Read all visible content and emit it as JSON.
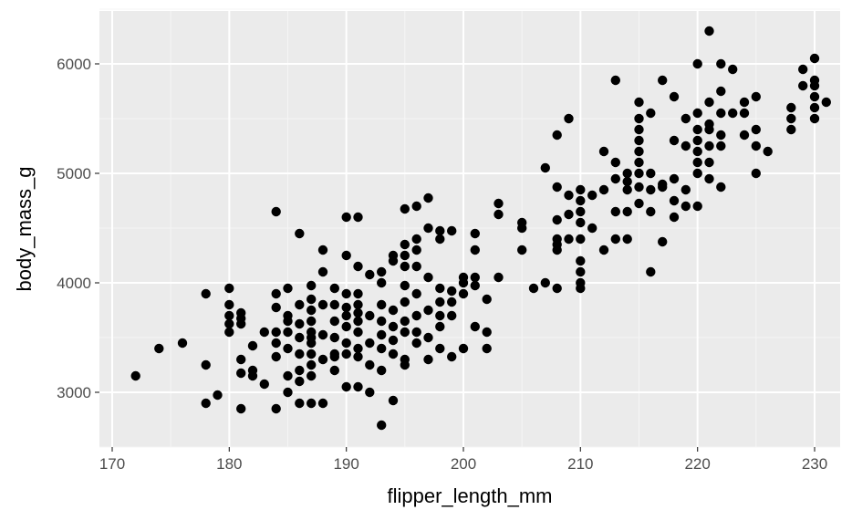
{
  "colors": {
    "panel_background": "#ebebeb",
    "grid_major": "#ffffff",
    "grid_minor": "#f5f5f5",
    "point": "#000000",
    "tick_label": "#4d4d4d"
  },
  "chart_data": {
    "type": "scatter",
    "title": "",
    "xlabel": "flipper_length_mm",
    "ylabel": "body_mass_g",
    "xlim": [
      170,
      232
    ],
    "ylim": [
      2500,
      6500
    ],
    "xticks": [
      170,
      180,
      190,
      200,
      210,
      220,
      230
    ],
    "yticks": [
      3000,
      4000,
      5000,
      6000
    ],
    "grid": true,
    "legend": "none",
    "points": [
      [
        172,
        3150
      ],
      [
        174,
        3400
      ],
      [
        176,
        3450
      ],
      [
        178,
        2900
      ],
      [
        178,
        3250
      ],
      [
        178,
        3900
      ],
      [
        179,
        2975
      ],
      [
        180,
        3550
      ],
      [
        180,
        3625
      ],
      [
        180,
        3700
      ],
      [
        180,
        3800
      ],
      [
        180,
        3950
      ],
      [
        181,
        2850
      ],
      [
        181,
        3175
      ],
      [
        181,
        3300
      ],
      [
        181,
        3625
      ],
      [
        181,
        3675
      ],
      [
        181,
        3725
      ],
      [
        182,
        3150
      ],
      [
        182,
        3200
      ],
      [
        182,
        3425
      ],
      [
        183,
        3075
      ],
      [
        183,
        3550
      ],
      [
        184,
        2850
      ],
      [
        184,
        3325
      ],
      [
        184,
        3450
      ],
      [
        184,
        3550
      ],
      [
        184,
        3775
      ],
      [
        184,
        3900
      ],
      [
        184,
        4650
      ],
      [
        185,
        3000
      ],
      [
        185,
        3150
      ],
      [
        185,
        3400
      ],
      [
        185,
        3550
      ],
      [
        185,
        3650
      ],
      [
        185,
        3700
      ],
      [
        185,
        3950
      ],
      [
        186,
        2900
      ],
      [
        186,
        3100
      ],
      [
        186,
        3200
      ],
      [
        186,
        3350
      ],
      [
        186,
        3500
      ],
      [
        186,
        3625
      ],
      [
        186,
        3800
      ],
      [
        186,
        4450
      ],
      [
        187,
        2900
      ],
      [
        187,
        3150
      ],
      [
        187,
        3250
      ],
      [
        187,
        3350
      ],
      [
        187,
        3450
      ],
      [
        187,
        3500
      ],
      [
        187,
        3550
      ],
      [
        187,
        3650
      ],
      [
        187,
        3750
      ],
      [
        187,
        3850
      ],
      [
        187,
        3975
      ],
      [
        188,
        2900
      ],
      [
        188,
        3300
      ],
      [
        188,
        3525
      ],
      [
        188,
        3800
      ],
      [
        188,
        4100
      ],
      [
        188,
        4300
      ],
      [
        189,
        3200
      ],
      [
        189,
        3325
      ],
      [
        189,
        3350
      ],
      [
        189,
        3500
      ],
      [
        189,
        3650
      ],
      [
        189,
        3800
      ],
      [
        189,
        3950
      ],
      [
        190,
        3050
      ],
      [
        190,
        3350
      ],
      [
        190,
        3450
      ],
      [
        190,
        3600
      ],
      [
        190,
        3700
      ],
      [
        190,
        3775
      ],
      [
        190,
        3900
      ],
      [
        190,
        4250
      ],
      [
        190,
        4600
      ],
      [
        191,
        3050
      ],
      [
        191,
        3325
      ],
      [
        191,
        3400
      ],
      [
        191,
        3550
      ],
      [
        191,
        3650
      ],
      [
        191,
        3725
      ],
      [
        191,
        3800
      ],
      [
        191,
        3900
      ],
      [
        191,
        4150
      ],
      [
        191,
        4600
      ],
      [
        192,
        3000
      ],
      [
        192,
        3250
      ],
      [
        192,
        3450
      ],
      [
        192,
        3700
      ],
      [
        192,
        4075
      ],
      [
        193,
        2700
      ],
      [
        193,
        3200
      ],
      [
        193,
        3400
      ],
      [
        193,
        3525
      ],
      [
        193,
        3650
      ],
      [
        193,
        3800
      ],
      [
        193,
        4000
      ],
      [
        193,
        4100
      ],
      [
        194,
        2925
      ],
      [
        194,
        3350
      ],
      [
        194,
        3475
      ],
      [
        194,
        3600
      ],
      [
        194,
        3750
      ],
      [
        194,
        4200
      ],
      [
        194,
        4250
      ],
      [
        195,
        3250
      ],
      [
        195,
        3300
      ],
      [
        195,
        3550
      ],
      [
        195,
        3650
      ],
      [
        195,
        3825
      ],
      [
        195,
        3975
      ],
      [
        195,
        4150
      ],
      [
        195,
        4250
      ],
      [
        195,
        4350
      ],
      [
        195,
        4675
      ],
      [
        196,
        3450
      ],
      [
        196,
        3550
      ],
      [
        196,
        3700
      ],
      [
        196,
        3900
      ],
      [
        196,
        4150
      ],
      [
        196,
        4300
      ],
      [
        196,
        4400
      ],
      [
        196,
        4700
      ],
      [
        197,
        3300
      ],
      [
        197,
        3500
      ],
      [
        197,
        3750
      ],
      [
        197,
        4050
      ],
      [
        197,
        4500
      ],
      [
        197,
        4775
      ],
      [
        198,
        3400
      ],
      [
        198,
        3600
      ],
      [
        198,
        3700
      ],
      [
        198,
        3825
      ],
      [
        198,
        3950
      ],
      [
        198,
        4400
      ],
      [
        198,
        4475
      ],
      [
        199,
        3325
      ],
      [
        199,
        3700
      ],
      [
        199,
        3825
      ],
      [
        199,
        3925
      ],
      [
        199,
        4475
      ],
      [
        200,
        3400
      ],
      [
        200,
        3900
      ],
      [
        200,
        4000
      ],
      [
        200,
        4050
      ],
      [
        201,
        3600
      ],
      [
        201,
        3975
      ],
      [
        201,
        4050
      ],
      [
        201,
        4300
      ],
      [
        201,
        4450
      ],
      [
        202,
        3400
      ],
      [
        202,
        3550
      ],
      [
        202,
        3850
      ],
      [
        203,
        4050
      ],
      [
        203,
        4625
      ],
      [
        203,
        4725
      ],
      [
        205,
        4300
      ],
      [
        205,
        4500
      ],
      [
        205,
        4550
      ],
      [
        206,
        3950
      ],
      [
        207,
        4000
      ],
      [
        207,
        5050
      ],
      [
        208,
        3950
      ],
      [
        208,
        4300
      ],
      [
        208,
        4350
      ],
      [
        208,
        4400
      ],
      [
        208,
        4575
      ],
      [
        208,
        4875
      ],
      [
        208,
        5350
      ],
      [
        209,
        4400
      ],
      [
        209,
        4625
      ],
      [
        209,
        4800
      ],
      [
        209,
        5500
      ],
      [
        210,
        3950
      ],
      [
        210,
        4000
      ],
      [
        210,
        4100
      ],
      [
        210,
        4200
      ],
      [
        210,
        4400
      ],
      [
        210,
        4550
      ],
      [
        210,
        4650
      ],
      [
        210,
        4750
      ],
      [
        210,
        4850
      ],
      [
        211,
        4800
      ],
      [
        211,
        4500
      ],
      [
        212,
        4300
      ],
      [
        212,
        4850
      ],
      [
        212,
        5200
      ],
      [
        213,
        4400
      ],
      [
        213,
        4650
      ],
      [
        213,
        4950
      ],
      [
        213,
        5100
      ],
      [
        213,
        5850
      ],
      [
        214,
        4400
      ],
      [
        214,
        4650
      ],
      [
        214,
        4850
      ],
      [
        214,
        4925
      ],
      [
        214,
        5000
      ],
      [
        215,
        4725
      ],
      [
        215,
        4875
      ],
      [
        215,
        5000
      ],
      [
        215,
        5100
      ],
      [
        215,
        5200
      ],
      [
        215,
        5300
      ],
      [
        215,
        5400
      ],
      [
        215,
        5500
      ],
      [
        215,
        5650
      ],
      [
        216,
        4100
      ],
      [
        216,
        4650
      ],
      [
        216,
        4850
      ],
      [
        216,
        5000
      ],
      [
        216,
        5550
      ],
      [
        217,
        4375
      ],
      [
        217,
        4875
      ],
      [
        217,
        4900
      ],
      [
        217,
        5850
      ],
      [
        218,
        4600
      ],
      [
        218,
        4750
      ],
      [
        218,
        4950
      ],
      [
        218,
        5300
      ],
      [
        218,
        5700
      ],
      [
        219,
        4700
      ],
      [
        219,
        4850
      ],
      [
        219,
        5250
      ],
      [
        219,
        5500
      ],
      [
        220,
        4700
      ],
      [
        220,
        5000
      ],
      [
        220,
        5100
      ],
      [
        220,
        5200
      ],
      [
        220,
        5300
      ],
      [
        220,
        5400
      ],
      [
        220,
        5550
      ],
      [
        220,
        6000
      ],
      [
        221,
        4950
      ],
      [
        221,
        5100
      ],
      [
        221,
        5250
      ],
      [
        221,
        5400
      ],
      [
        221,
        5450
      ],
      [
        221,
        5650
      ],
      [
        221,
        6300
      ],
      [
        222,
        4875
      ],
      [
        222,
        5250
      ],
      [
        222,
        5350
      ],
      [
        222,
        5550
      ],
      [
        222,
        5750
      ],
      [
        222,
        6000
      ],
      [
        223,
        5550
      ],
      [
        223,
        5950
      ],
      [
        224,
        5350
      ],
      [
        224,
        5550
      ],
      [
        224,
        5650
      ],
      [
        225,
        5000
      ],
      [
        225,
        5250
      ],
      [
        225,
        5400
      ],
      [
        225,
        5700
      ],
      [
        226,
        5200
      ],
      [
        228,
        5400
      ],
      [
        228,
        5500
      ],
      [
        228,
        5600
      ],
      [
        229,
        5800
      ],
      [
        229,
        5950
      ],
      [
        230,
        5500
      ],
      [
        230,
        5600
      ],
      [
        230,
        5700
      ],
      [
        230,
        5800
      ],
      [
        230,
        5850
      ],
      [
        230,
        6050
      ],
      [
        231,
        5650
      ]
    ]
  }
}
